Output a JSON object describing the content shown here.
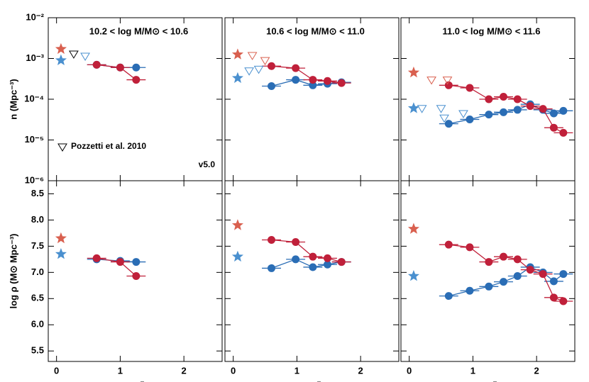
{
  "chart_data": [
    {
      "type": "scatter",
      "title": "10.2 < log M/M⊙ < 10.6",
      "ylabel": "n (Mpc⁻³)",
      "ylog": true,
      "xlim": [
        -0.13,
        2.6
      ],
      "xticks": [
        0,
        1,
        2
      ],
      "ylim": [
        1e-06,
        0.01
      ],
      "yticks": [
        {
          "value": 1e-06,
          "label": "10⁻⁶"
        },
        {
          "value": 1e-05,
          "label": "10⁻⁵"
        },
        {
          "value": 0.0001,
          "label": "10⁻⁴"
        },
        {
          "value": 0.001,
          "label": "10⁻³"
        },
        {
          "value": 0.01,
          "label": "10⁻²"
        }
      ],
      "annotation": "v5.0",
      "legend": "lower left",
      "series": [
        {
          "color": "#2a6db5",
          "marker": "circle",
          "line": true,
          "xerr": 0.15,
          "x": [
            0.63,
            1.0,
            1.25
          ],
          "values": [
            0.0007,
            0.0006,
            0.0006
          ]
        },
        {
          "color": "#c0203a",
          "marker": "circle",
          "line": true,
          "xerr": 0.15,
          "x": [
            0.63,
            1.0,
            1.25
          ],
          "values": [
            0.0007,
            0.0006,
            0.0003
          ]
        },
        {
          "color": "#d9604f",
          "marker": "star",
          "x": [
            0.07
          ],
          "values": [
            0.0017
          ]
        },
        {
          "color": "#4a90cf",
          "marker": "star",
          "x": [
            0.07
          ],
          "values": [
            0.0009
          ]
        },
        {
          "name": "Pozzetti et al. 2010",
          "color": "#000000",
          "marker": "triangle",
          "x": [
            0.27
          ],
          "values": [
            0.0013
          ]
        },
        {
          "color": "#4a90cf",
          "marker": "triangle",
          "x": [
            0.45
          ],
          "values": [
            0.00115
          ]
        }
      ]
    },
    {
      "type": "scatter",
      "title": "10.6 < log M/M⊙ < 11.0",
      "ylog": true,
      "xlim": [
        -0.13,
        2.6
      ],
      "xticks": [
        0,
        1,
        2
      ],
      "ylim": [
        1e-06,
        0.01
      ],
      "yticks": [
        1e-06,
        1e-05,
        0.0001,
        0.001,
        0.01
      ],
      "series": [
        {
          "color": "#2a6db5",
          "marker": "circle",
          "line": true,
          "xerr": 0.15,
          "x": [
            0.6,
            0.98,
            1.25,
            1.48,
            1.7
          ],
          "values": [
            0.00021,
            0.0003,
            0.00022,
            0.00024,
            0.00026
          ]
        },
        {
          "color": "#c0203a",
          "marker": "circle",
          "line": true,
          "xerr": 0.15,
          "x": [
            0.6,
            0.98,
            1.25,
            1.48,
            1.7
          ],
          "values": [
            0.00065,
            0.00058,
            0.0003,
            0.00028,
            0.00025
          ]
        },
        {
          "color": "#d9604f",
          "marker": "star",
          "x": [
            0.07
          ],
          "values": [
            0.00125
          ]
        },
        {
          "color": "#4a90cf",
          "marker": "star",
          "x": [
            0.07
          ],
          "values": [
            0.00033
          ]
        },
        {
          "color": "#d9604f",
          "marker": "triangle",
          "x": [
            0.3,
            0.5
          ],
          "values": [
            0.0012,
            0.0009
          ]
        },
        {
          "color": "#4a90cf",
          "marker": "triangle",
          "x": [
            0.25,
            0.4
          ],
          "values": [
            0.0005,
            0.00055
          ]
        }
      ]
    },
    {
      "type": "scatter",
      "title": "11.0 < log M/M⊙ < 11.6",
      "ylog": true,
      "xlim": [
        -0.13,
        2.6
      ],
      "xticks": [
        0,
        1,
        2
      ],
      "ylim": [
        1e-06,
        0.01
      ],
      "yticks": [
        1e-06,
        1e-05,
        0.0001,
        0.001,
        0.01
      ],
      "series": [
        {
          "color": "#2a6db5",
          "marker": "circle",
          "line": true,
          "xerr": 0.15,
          "x": [
            0.62,
            0.95,
            1.25,
            1.48,
            1.7,
            1.9,
            2.1,
            2.27,
            2.42
          ],
          "values": [
            2.5e-05,
            3.2e-05,
            4.2e-05,
            4.8e-05,
            5.5e-05,
            7.5e-05,
            5.5e-05,
            4.5e-05,
            5.2e-05
          ]
        },
        {
          "color": "#c0203a",
          "marker": "circle",
          "line": true,
          "xerr": 0.15,
          "x": [
            0.62,
            0.95,
            1.25,
            1.48,
            1.7,
            1.9,
            2.1,
            2.27,
            2.42
          ],
          "values": [
            0.00022,
            0.00019,
            0.0001,
            0.000115,
            0.0001,
            6.8e-05,
            5.8e-05,
            2e-05,
            1.5e-05
          ]
        },
        {
          "color": "#d9604f",
          "marker": "star",
          "x": [
            0.07
          ],
          "values": [
            0.00045
          ]
        },
        {
          "color": "#4a90cf",
          "marker": "star",
          "x": [
            0.07
          ],
          "values": [
            6e-05
          ]
        },
        {
          "color": "#d9604f",
          "marker": "triangle",
          "x": [
            0.35,
            0.6
          ],
          "values": [
            0.0003,
            0.0003
          ]
        },
        {
          "color": "#4a90cf",
          "marker": "triangle",
          "x": [
            0.2,
            0.5,
            0.55,
            0.85
          ],
          "values": [
            6e-05,
            6e-05,
            3.5e-05,
            4.5e-05
          ]
        }
      ]
    },
    {
      "type": "scatter",
      "ylabel": "log ρ (M⊙ Mpc⁻³)",
      "xlabel": "z",
      "xlim": [
        -0.13,
        2.6
      ],
      "xticks": [
        0,
        1,
        2
      ],
      "ylim": [
        5.3,
        8.75
      ],
      "yticks": [
        {
          "value": 5.5,
          "label": "5.5"
        },
        {
          "value": 6,
          "label": "6.0"
        },
        {
          "value": 6.5,
          "label": "6.5"
        },
        {
          "value": 7,
          "label": "7.0"
        },
        {
          "value": 7.5,
          "label": "7.5"
        },
        {
          "value": 8,
          "label": "8.0"
        },
        {
          "value": 8.5,
          "label": "8.5"
        }
      ],
      "series": [
        {
          "color": "#2a6db5",
          "marker": "circle",
          "line": true,
          "xerr": 0.15,
          "x": [
            0.63,
            1.0,
            1.25
          ],
          "values": [
            7.25,
            7.22,
            7.2
          ]
        },
        {
          "color": "#c0203a",
          "marker": "circle",
          "line": true,
          "xerr": 0.15,
          "x": [
            0.63,
            1.0,
            1.25
          ],
          "values": [
            7.27,
            7.2,
            6.93
          ]
        },
        {
          "color": "#d9604f",
          "marker": "star",
          "x": [
            0.07
          ],
          "values": [
            7.65
          ]
        },
        {
          "color": "#4a90cf",
          "marker": "star",
          "x": [
            0.07
          ],
          "values": [
            7.35
          ]
        }
      ]
    },
    {
      "type": "scatter",
      "xlabel": "z",
      "xlim": [
        -0.13,
        2.6
      ],
      "xticks": [
        0,
        1,
        2
      ],
      "ylim": [
        5.3,
        8.75
      ],
      "yticks": [
        5.5,
        6,
        6.5,
        7,
        7.5,
        8,
        8.5
      ],
      "series": [
        {
          "color": "#2a6db5",
          "marker": "circle",
          "line": true,
          "xerr": 0.15,
          "x": [
            0.6,
            0.98,
            1.25,
            1.48,
            1.7
          ],
          "values": [
            7.08,
            7.25,
            7.1,
            7.15,
            7.2
          ]
        },
        {
          "color": "#c0203a",
          "marker": "circle",
          "line": true,
          "xerr": 0.15,
          "x": [
            0.6,
            0.98,
            1.25,
            1.48,
            1.7
          ],
          "values": [
            7.62,
            7.58,
            7.3,
            7.27,
            7.2
          ]
        },
        {
          "color": "#d9604f",
          "marker": "star",
          "x": [
            0.07
          ],
          "values": [
            7.9
          ]
        },
        {
          "color": "#4a90cf",
          "marker": "star",
          "x": [
            0.07
          ],
          "values": [
            7.3
          ]
        }
      ]
    },
    {
      "type": "scatter",
      "xlabel": "z",
      "xlim": [
        -0.13,
        2.6
      ],
      "xticks": [
        0,
        1,
        2
      ],
      "ylim": [
        5.3,
        8.75
      ],
      "yticks": [
        5.5,
        6,
        6.5,
        7,
        7.5,
        8,
        8.5
      ],
      "series": [
        {
          "color": "#2a6db5",
          "marker": "circle",
          "line": true,
          "xerr": 0.15,
          "x": [
            0.62,
            0.95,
            1.25,
            1.48,
            1.7,
            1.9,
            2.1,
            2.27,
            2.42
          ],
          "values": [
            6.55,
            6.65,
            6.73,
            6.82,
            6.93,
            7.1,
            7.0,
            6.83,
            6.97
          ]
        },
        {
          "color": "#c0203a",
          "marker": "circle",
          "line": true,
          "xerr": 0.15,
          "x": [
            0.62,
            0.95,
            1.25,
            1.48,
            1.7,
            1.9,
            2.1,
            2.27,
            2.42
          ],
          "values": [
            7.53,
            7.48,
            7.2,
            7.3,
            7.25,
            7.05,
            6.97,
            6.52,
            6.45
          ]
        },
        {
          "color": "#d9604f",
          "marker": "star",
          "x": [
            0.07
          ],
          "values": [
            7.83
          ]
        },
        {
          "color": "#4a90cf",
          "marker": "star",
          "x": [
            0.07
          ],
          "values": [
            6.93
          ]
        }
      ]
    }
  ]
}
